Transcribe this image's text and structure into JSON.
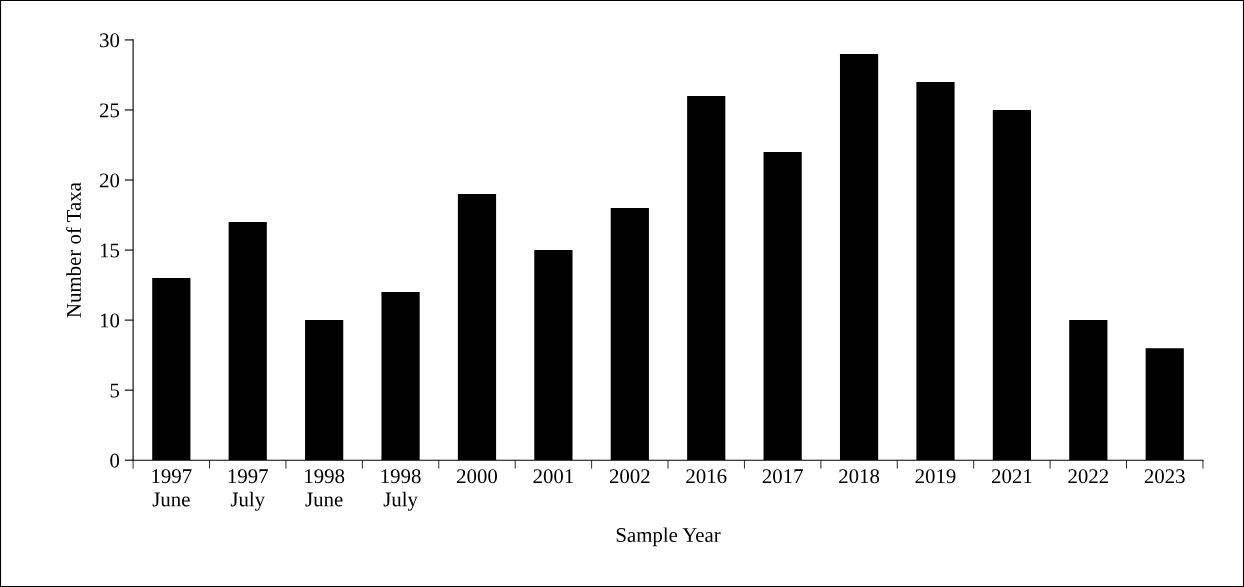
{
  "chart_data": {
    "type": "bar",
    "xlabel": "Sample Year",
    "ylabel": "Number of Taxa",
    "categories": [
      "1997\nJune",
      "1997\nJuly",
      "1998\nJune",
      "1998\nJuly",
      "2000",
      "2001",
      "2002",
      "2016",
      "2017",
      "2018",
      "2019",
      "2021",
      "2022",
      "2023"
    ],
    "values": [
      13,
      17,
      10,
      12,
      19,
      15,
      18,
      26,
      22,
      29,
      27,
      25,
      10,
      8
    ],
    "color": "#000000",
    "ylim": [
      0,
      30
    ],
    "yticks": [
      0,
      5,
      10,
      15,
      20,
      25,
      30
    ],
    "grid": false,
    "legend": false
  }
}
